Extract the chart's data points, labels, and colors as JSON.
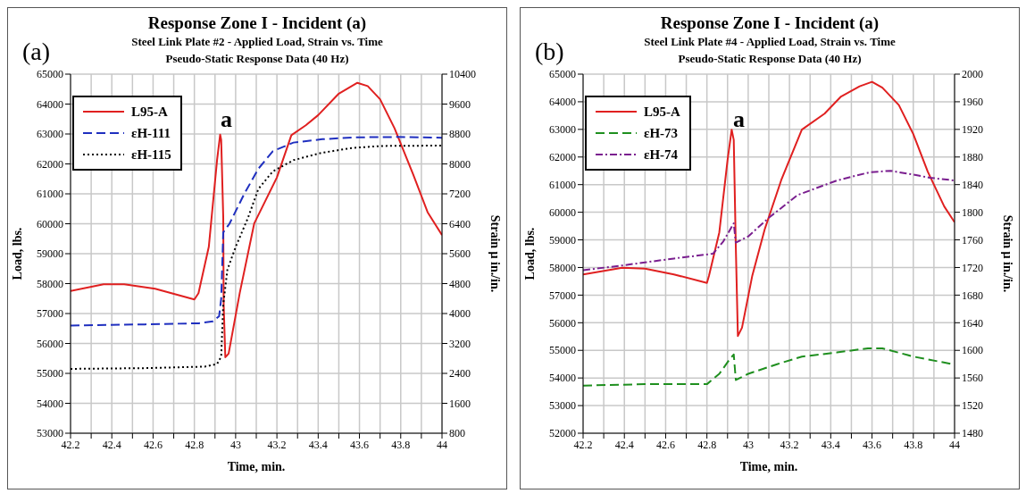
{
  "chart_data": [
    {
      "type": "line",
      "title": "Response Zone I - Incident (a)",
      "subtitle": "Steel Link Plate #2 - Applied Load, Strain vs. Time\nPseudo-Static Response Data (40 Hz)",
      "xlabel": "Time, min.",
      "ylabel": "Load, lbs.",
      "y2label": "Strain μ in./in.",
      "annotations": [
        "(a)",
        "a"
      ],
      "xlim": [
        42.2,
        44
      ],
      "xticks": [
        42.2,
        {
          "value": 42.3,
          "label": null
        },
        42.4,
        {
          "value": 42.5,
          "label": null
        },
        42.6,
        {
          "value": 42.7,
          "label": null
        },
        42.8,
        {
          "value": 42.9,
          "label": null
        },
        43,
        {
          "value": 43.1,
          "label": null
        },
        43.2,
        {
          "value": 43.3,
          "label": null
        },
        43.4,
        {
          "value": 43.5,
          "label": null
        },
        43.6,
        {
          "value": 43.7,
          "label": null
        },
        43.8,
        {
          "value": 43.9,
          "label": null
        },
        44
      ],
      "ylim": [
        53000,
        65000
      ],
      "yticks": [
        53000,
        54000,
        55000,
        56000,
        57000,
        58000,
        59000,
        60000,
        61000,
        62000,
        63000,
        64000,
        65000
      ],
      "y2lim": [
        800,
        10400
      ],
      "y2ticks": [
        800,
        1600,
        2400,
        3200,
        4000,
        4800,
        5600,
        6400,
        7200,
        8000,
        8800,
        9600,
        10400
      ],
      "grid": true,
      "legend": "top left",
      "marker": "none",
      "series": [
        {
          "name": "L95-A",
          "color": "#e02020",
          "line_style": "solid",
          "x": [
            42.2,
            42.36,
            42.46,
            42.61,
            42.8,
            42.82,
            42.87,
            42.91,
            42.925,
            42.93,
            42.94,
            42.942,
            42.95,
            42.966,
            43.02,
            43.09,
            43.2,
            43.27,
            43.34,
            43.4,
            43.5,
            43.59,
            43.64,
            43.7,
            43.77,
            43.86,
            43.93,
            44
          ],
          "values": [
            57750,
            57980,
            57980,
            57830,
            57470,
            57680,
            59230,
            62130,
            62980,
            62800,
            60200,
            57300,
            55540,
            55660,
            57690,
            60010,
            61550,
            62960,
            63290,
            63630,
            64350,
            64710,
            64600,
            64160,
            63190,
            61650,
            60390,
            59620
          ]
        },
        {
          "name": "εH-111",
          "color": "#1f2fbf",
          "line_style": "dashed",
          "axis": "y2",
          "x": [
            42.2,
            42.56,
            42.82,
            42.89,
            42.92,
            42.93,
            42.94,
            42.97,
            43.04,
            43.11,
            43.18,
            43.28,
            43.42,
            43.57,
            43.78,
            44
          ],
          "values": [
            3680,
            3710,
            3740,
            3790,
            3930,
            4390,
            6170,
            6400,
            7180,
            7870,
            8340,
            8570,
            8660,
            8710,
            8720,
            8700
          ]
        },
        {
          "name": "εH-115",
          "color": "#000000",
          "line_style": "dotted",
          "axis": "y2",
          "x": [
            42.2,
            42.56,
            42.85,
            42.91,
            42.93,
            42.94,
            42.96,
            43,
            43.06,
            43.11,
            43.18,
            43.28,
            43.42,
            43.57,
            43.71,
            44
          ],
          "values": [
            2520,
            2540,
            2580,
            2650,
            2850,
            4240,
            5170,
            5780,
            6560,
            7330,
            7800,
            8100,
            8300,
            8430,
            8480,
            8490
          ]
        }
      ]
    },
    {
      "type": "line",
      "title": "Response Zone I - Incident (a)",
      "subtitle": "Steel Link Plate #4 - Applied Load, Strain vs. Time\nPseudo-Static Response Data (40 Hz)",
      "xlabel": "Time, min.",
      "ylabel": "Load, lbs.",
      "y2label": "Strain μ in./in.",
      "annotations": [
        "(b)",
        "a"
      ],
      "xlim": [
        42.2,
        44
      ],
      "xticks": [
        42.2,
        {
          "value": 42.3,
          "label": null
        },
        42.4,
        {
          "value": 42.5,
          "label": null
        },
        42.6,
        {
          "value": 42.7,
          "label": null
        },
        42.8,
        {
          "value": 42.9,
          "label": null
        },
        43,
        {
          "value": 43.1,
          "label": null
        },
        43.2,
        {
          "value": 43.3,
          "label": null
        },
        43.4,
        {
          "value": 43.5,
          "label": null
        },
        43.6,
        {
          "value": 43.7,
          "label": null
        },
        43.8,
        {
          "value": 43.9,
          "label": null
        },
        44
      ],
      "ylim": [
        52000,
        65000
      ],
      "yticks": [
        52000,
        53000,
        54000,
        55000,
        56000,
        57000,
        58000,
        59000,
        60000,
        61000,
        62000,
        63000,
        64000,
        65000
      ],
      "y2lim": [
        1480,
        2000
      ],
      "y2ticks": [
        1480,
        1520,
        1560,
        1600,
        1640,
        1680,
        1720,
        1760,
        1800,
        1840,
        1880,
        1920,
        1960,
        2000
      ],
      "grid": true,
      "legend": "top left",
      "marker": "none",
      "series": [
        {
          "name": "L95-A",
          "color": "#e02020",
          "line_style": "solid",
          "x": [
            42.2,
            42.39,
            42.5,
            42.64,
            42.8,
            42.81,
            42.86,
            42.9,
            42.92,
            42.93,
            42.94,
            42.95,
            42.97,
            43.02,
            43.08,
            43.16,
            43.26,
            43.37,
            43.45,
            43.54,
            43.6,
            43.65,
            43.73,
            43.8,
            43.87,
            43.95,
            44
          ],
          "values": [
            57750,
            57990,
            57960,
            57750,
            57440,
            57700,
            59270,
            61890,
            62990,
            62620,
            58750,
            55520,
            55820,
            57710,
            59380,
            61160,
            62990,
            63570,
            64190,
            64560,
            64720,
            64510,
            63880,
            62830,
            61470,
            60210,
            59640
          ]
        },
        {
          "name": "εH-73",
          "color": "#1f8f1f",
          "line_style": "dashed",
          "axis": "y2",
          "x": [
            42.2,
            42.5,
            42.8,
            42.86,
            42.91,
            42.93,
            42.94,
            43,
            43.14,
            43.26,
            43.43,
            43.58,
            43.65,
            43.8,
            43.99
          ],
          "values": [
            1549,
            1551,
            1551,
            1566,
            1587,
            1594,
            1557,
            1566,
            1580,
            1591,
            1597,
            1603,
            1603,
            1591,
            1580
          ]
        },
        {
          "name": "εH-74",
          "color": "#7a1f8f",
          "line_style": "dashdot",
          "axis": "y2",
          "x": [
            42.2,
            42.39,
            42.64,
            42.83,
            42.88,
            42.93,
            42.94,
            43,
            43.1,
            43.24,
            43.43,
            43.59,
            43.69,
            43.79,
            43.88,
            44
          ],
          "values": [
            1716,
            1723,
            1733,
            1740,
            1758,
            1784,
            1756,
            1765,
            1792,
            1825,
            1846,
            1858,
            1860,
            1855,
            1850,
            1846
          ]
        }
      ]
    }
  ]
}
